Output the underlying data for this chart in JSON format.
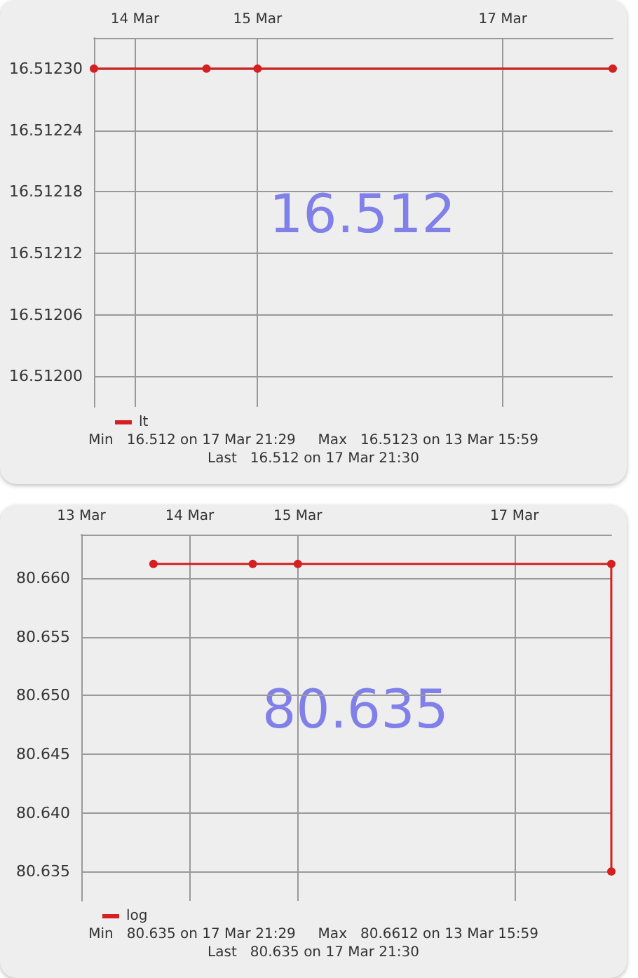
{
  "chart_data": [
    {
      "type": "line",
      "xlim": [
        "--03-13T15:59",
        "--03-17T21:30"
      ],
      "ylim": [
        16.51197,
        16.51233
      ],
      "xticks": [
        {
          "value": "--03-14",
          "label": "14 Mar"
        },
        {
          "value": "--03-15",
          "label": "15 Mar"
        },
        {
          "value": "--03-17",
          "label": "17 Mar"
        }
      ],
      "yticks": [
        {
          "value": 16.512,
          "label": "16.51200"
        },
        {
          "value": 16.51206,
          "label": "16.51206"
        },
        {
          "value": 16.51212,
          "label": "16.51212"
        },
        {
          "value": 16.51218,
          "label": "16.51218"
        },
        {
          "value": 16.51224,
          "label": "16.51224"
        },
        {
          "value": 16.5123,
          "label": "16.51230"
        }
      ],
      "series": [
        {
          "name": "lt",
          "color": "#d42020",
          "x": [
            "--03-13T15:59",
            "--03-14T14:00",
            "--03-15",
            "--03-17T21:30"
          ],
          "values": [
            16.5123,
            16.5123,
            16.5123,
            16.5123
          ]
        }
      ],
      "annotations": [
        "16.512",
        "Min   16.512 on 17 Mar 21:29     Max   16.5123 on 13 Mar 15:59",
        "Last   16.512 on 17 Mar 21:30"
      ],
      "grid": true,
      "legend": "bottom left",
      "marker": "circle",
      "line_style": "solid"
    },
    {
      "type": "line",
      "xlim": [
        "--03-13",
        "--03-17T21:30"
      ],
      "ylim": [
        80.6325,
        80.6637
      ],
      "xticks": [
        {
          "value": "--03-13",
          "label": "13 Mar"
        },
        {
          "value": "--03-14",
          "label": "14 Mar"
        },
        {
          "value": "--03-15",
          "label": "15 Mar"
        },
        {
          "value": "--03-17",
          "label": "17 Mar"
        }
      ],
      "yticks": [
        {
          "value": 80.635,
          "label": "80.635"
        },
        {
          "value": 80.64,
          "label": "80.640"
        },
        {
          "value": 80.645,
          "label": "80.645"
        },
        {
          "value": 80.65,
          "label": "80.650"
        },
        {
          "value": 80.655,
          "label": "80.655"
        },
        {
          "value": 80.66,
          "label": "80.660"
        }
      ],
      "series": [
        {
          "name": "log",
          "color": "#d42020",
          "x": [
            "--03-13T15:59",
            "--03-14T14:00",
            "--03-15",
            "--03-17T21:29",
            "--03-17T21:30"
          ],
          "values": [
            80.6612,
            80.6612,
            80.6612,
            80.6612,
            80.635
          ]
        }
      ],
      "annotations": [
        "80.635",
        "Min   80.635 on 17 Mar 21:29     Max   80.6612 on 13 Mar 15:59",
        "Last   80.635 on 17 Mar 21:30"
      ],
      "grid": true,
      "legend": "bottom left",
      "marker": "circle",
      "line_style": "solid"
    }
  ]
}
